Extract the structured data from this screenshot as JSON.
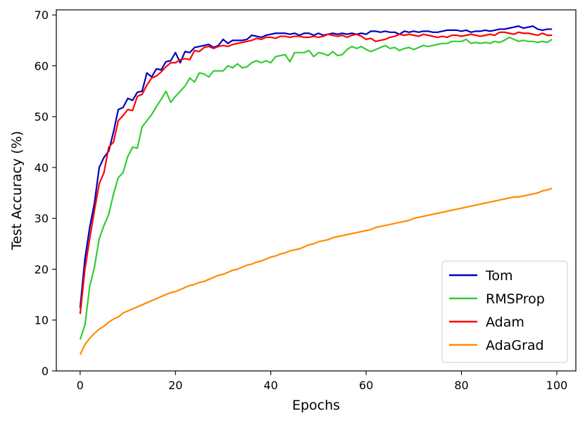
{
  "chart_data": {
    "type": "line",
    "title": "",
    "xlabel": "Epochs",
    "ylabel": "Test Accuracy (%)",
    "xlim": [
      -5,
      104
    ],
    "ylim": [
      0,
      71
    ],
    "xticks": [
      0,
      20,
      40,
      60,
      80,
      100
    ],
    "yticks": [
      0,
      10,
      20,
      30,
      40,
      50,
      60,
      70
    ],
    "grid": false,
    "legend": "bottom-right",
    "x": [
      0,
      1,
      2,
      3,
      4,
      5,
      6,
      7,
      8,
      9,
      10,
      11,
      12,
      13,
      14,
      15,
      16,
      17,
      18,
      19,
      20,
      21,
      22,
      23,
      24,
      25,
      26,
      27,
      28,
      29,
      30,
      31,
      32,
      33,
      34,
      35,
      36,
      37,
      38,
      39,
      40,
      41,
      42,
      43,
      44,
      45,
      46,
      47,
      48,
      49,
      50,
      51,
      52,
      53,
      54,
      55,
      56,
      57,
      58,
      59,
      60,
      61,
      62,
      63,
      64,
      65,
      66,
      67,
      68,
      69,
      70,
      71,
      72,
      73,
      74,
      75,
      76,
      77,
      78,
      79,
      80,
      81,
      82,
      83,
      84,
      85,
      86,
      87,
      88,
      89,
      90,
      91,
      92,
      93,
      94,
      95,
      96,
      97,
      98,
      99
    ],
    "series": [
      {
        "name": "Tom",
        "color": "#0000c0",
        "values": [
          12.4,
          22.0,
          28.2,
          33.0,
          40.0,
          42.0,
          43.2,
          47.0,
          51.4,
          51.8,
          53.6,
          53.2,
          54.8,
          55.0,
          58.6,
          57.8,
          59.4,
          59.2,
          60.8,
          61.0,
          62.6,
          60.6,
          62.8,
          62.6,
          63.6,
          63.8,
          64.0,
          64.2,
          63.6,
          64.0,
          65.2,
          64.4,
          65.0,
          65.0,
          65.0,
          65.2,
          66.0,
          65.8,
          65.6,
          66.0,
          66.2,
          66.4,
          66.4,
          66.4,
          66.2,
          66.4,
          66.0,
          66.4,
          66.4,
          66.0,
          66.4,
          66.0,
          66.2,
          66.4,
          66.2,
          66.4,
          66.2,
          66.4,
          66.2,
          66.4,
          66.2,
          66.8,
          66.8,
          66.6,
          66.8,
          66.6,
          66.6,
          66.2,
          66.8,
          66.6,
          66.8,
          66.6,
          66.8,
          66.8,
          66.6,
          66.6,
          66.8,
          67.0,
          67.0,
          67.0,
          66.8,
          67.0,
          66.6,
          66.8,
          66.8,
          67.0,
          66.8,
          67.0,
          67.2,
          67.2,
          67.4,
          67.6,
          67.8,
          67.4,
          67.6,
          67.8,
          67.2,
          67.0,
          67.2,
          67.2
        ]
      },
      {
        "name": "RMSProp",
        "color": "#33cc33",
        "values": [
          6.2,
          9.0,
          16.6,
          20.4,
          26.0,
          28.6,
          30.8,
          34.8,
          38.0,
          39.0,
          42.2,
          44.0,
          43.8,
          48.0,
          49.2,
          50.4,
          52.0,
          53.4,
          55.0,
          52.8,
          54.0,
          55.0,
          56.0,
          57.6,
          56.8,
          58.6,
          58.4,
          57.8,
          59.0,
          59.0,
          59.0,
          60.0,
          59.6,
          60.4,
          59.6,
          59.8,
          60.6,
          61.0,
          60.6,
          61.0,
          60.6,
          61.8,
          62.0,
          62.2,
          60.8,
          62.6,
          62.6,
          62.6,
          63.0,
          61.8,
          62.6,
          62.4,
          62.0,
          62.8,
          62.0,
          62.2,
          63.2,
          63.8,
          63.4,
          63.8,
          63.2,
          62.8,
          63.2,
          63.6,
          64.0,
          63.4,
          63.6,
          63.0,
          63.4,
          63.6,
          63.2,
          63.6,
          64.0,
          63.8,
          64.0,
          64.2,
          64.4,
          64.4,
          64.8,
          64.8,
          64.8,
          65.2,
          64.4,
          64.6,
          64.4,
          64.6,
          64.4,
          64.8,
          64.6,
          65.0,
          65.6,
          65.2,
          64.8,
          65.0,
          64.8,
          64.8,
          64.6,
          64.8,
          64.6,
          65.2
        ]
      },
      {
        "name": "Adam",
        "color": "#ff0000",
        "values": [
          11.2,
          20.0,
          26.0,
          31.6,
          36.8,
          39.0,
          44.0,
          45.0,
          49.2,
          50.2,
          51.4,
          51.2,
          54.0,
          54.4,
          56.2,
          57.6,
          58.0,
          58.8,
          59.8,
          60.6,
          60.6,
          61.2,
          61.4,
          61.2,
          63.0,
          62.8,
          63.6,
          63.8,
          63.4,
          63.8,
          64.0,
          63.8,
          64.2,
          64.4,
          64.6,
          64.8,
          65.0,
          65.4,
          65.2,
          65.6,
          65.6,
          65.4,
          65.8,
          65.8,
          65.6,
          65.8,
          65.8,
          65.6,
          65.6,
          65.8,
          65.6,
          65.8,
          66.2,
          66.0,
          65.8,
          66.0,
          65.6,
          66.0,
          66.2,
          65.8,
          65.2,
          65.4,
          64.8,
          65.0,
          65.2,
          65.6,
          65.8,
          66.2,
          66.0,
          66.2,
          66.0,
          65.8,
          66.2,
          66.0,
          65.8,
          65.6,
          65.8,
          65.6,
          66.0,
          66.0,
          65.8,
          66.0,
          66.2,
          66.0,
          65.8,
          66.0,
          66.2,
          66.0,
          66.6,
          66.6,
          66.4,
          66.2,
          66.6,
          66.4,
          66.4,
          66.2,
          66.0,
          66.4,
          66.0,
          66.0
        ]
      },
      {
        "name": "AdaGrad",
        "color": "#ff8c00",
        "values": [
          3.2,
          5.2,
          6.4,
          7.4,
          8.2,
          8.8,
          9.6,
          10.2,
          10.6,
          11.4,
          11.8,
          12.2,
          12.6,
          13.0,
          13.4,
          13.8,
          14.2,
          14.6,
          15.0,
          15.4,
          15.6,
          16.0,
          16.4,
          16.8,
          17.0,
          17.4,
          17.6,
          18.0,
          18.4,
          18.8,
          19.0,
          19.4,
          19.8,
          20.0,
          20.4,
          20.8,
          21.0,
          21.4,
          21.6,
          22.0,
          22.4,
          22.6,
          23.0,
          23.2,
          23.6,
          23.8,
          24.0,
          24.4,
          24.8,
          25.0,
          25.4,
          25.6,
          25.8,
          26.2,
          26.4,
          26.6,
          26.8,
          27.0,
          27.2,
          27.4,
          27.6,
          27.8,
          28.2,
          28.4,
          28.6,
          28.8,
          29.0,
          29.2,
          29.4,
          29.6,
          30.0,
          30.2,
          30.4,
          30.6,
          30.8,
          31.0,
          31.2,
          31.4,
          31.6,
          31.8,
          32.0,
          32.2,
          32.4,
          32.6,
          32.8,
          33.0,
          33.2,
          33.4,
          33.6,
          33.8,
          34.0,
          34.2,
          34.2,
          34.4,
          34.6,
          34.8,
          35.0,
          35.4,
          35.6,
          35.9
        ]
      }
    ]
  }
}
